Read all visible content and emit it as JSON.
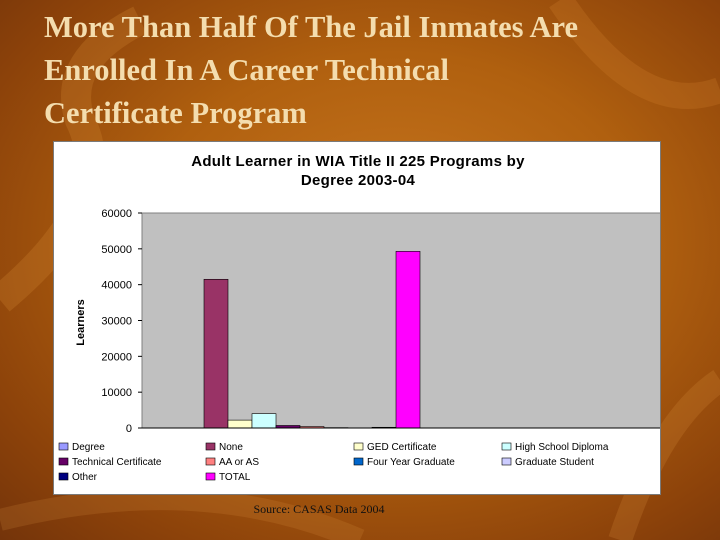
{
  "slide": {
    "title_lines": [
      "More Than Half Of The Jail Inmates Are",
      "Enrolled In A Career Technical",
      "Certificate Program"
    ],
    "source": "Source: CASAS Data 2004"
  },
  "chart_data": {
    "type": "bar",
    "title_lines": [
      "Adult Learner in WIA Title II 225 Programs by",
      "Degree  2003-04"
    ],
    "ylabel": "Learners",
    "xlabel": "",
    "ylim": [
      0,
      60000
    ],
    "yticks": [
      "60000",
      "50000",
      "40000",
      "30000",
      "20000",
      "10000",
      "0"
    ],
    "grid": false,
    "legend_position": "bottom",
    "series": [
      {
        "name": "Degree",
        "value": 0,
        "color": "#9999ff"
      },
      {
        "name": "None",
        "value": 41500,
        "color": "#993366"
      },
      {
        "name": "GED Certificate",
        "value": 2200,
        "color": "#ffffcc"
      },
      {
        "name": "High School Diploma",
        "value": 4000,
        "color": "#ccffff"
      },
      {
        "name": "Technical Certificate",
        "value": 700,
        "color": "#660066"
      },
      {
        "name": "AA or AS",
        "value": 400,
        "color": "#ff8080"
      },
      {
        "name": "Four Year Graduate",
        "value": 100,
        "color": "#0066cc"
      },
      {
        "name": "Graduate Student",
        "value": 50,
        "color": "#ccccff"
      },
      {
        "name": "Other",
        "value": 200,
        "color": "#000080"
      },
      {
        "name": "TOTAL",
        "value": 49300,
        "color": "#ff00ff"
      }
    ]
  },
  "colors": {
    "background": "#b0600f",
    "title_text": "#f4ddae",
    "plot_area": "#c0c0c0"
  }
}
